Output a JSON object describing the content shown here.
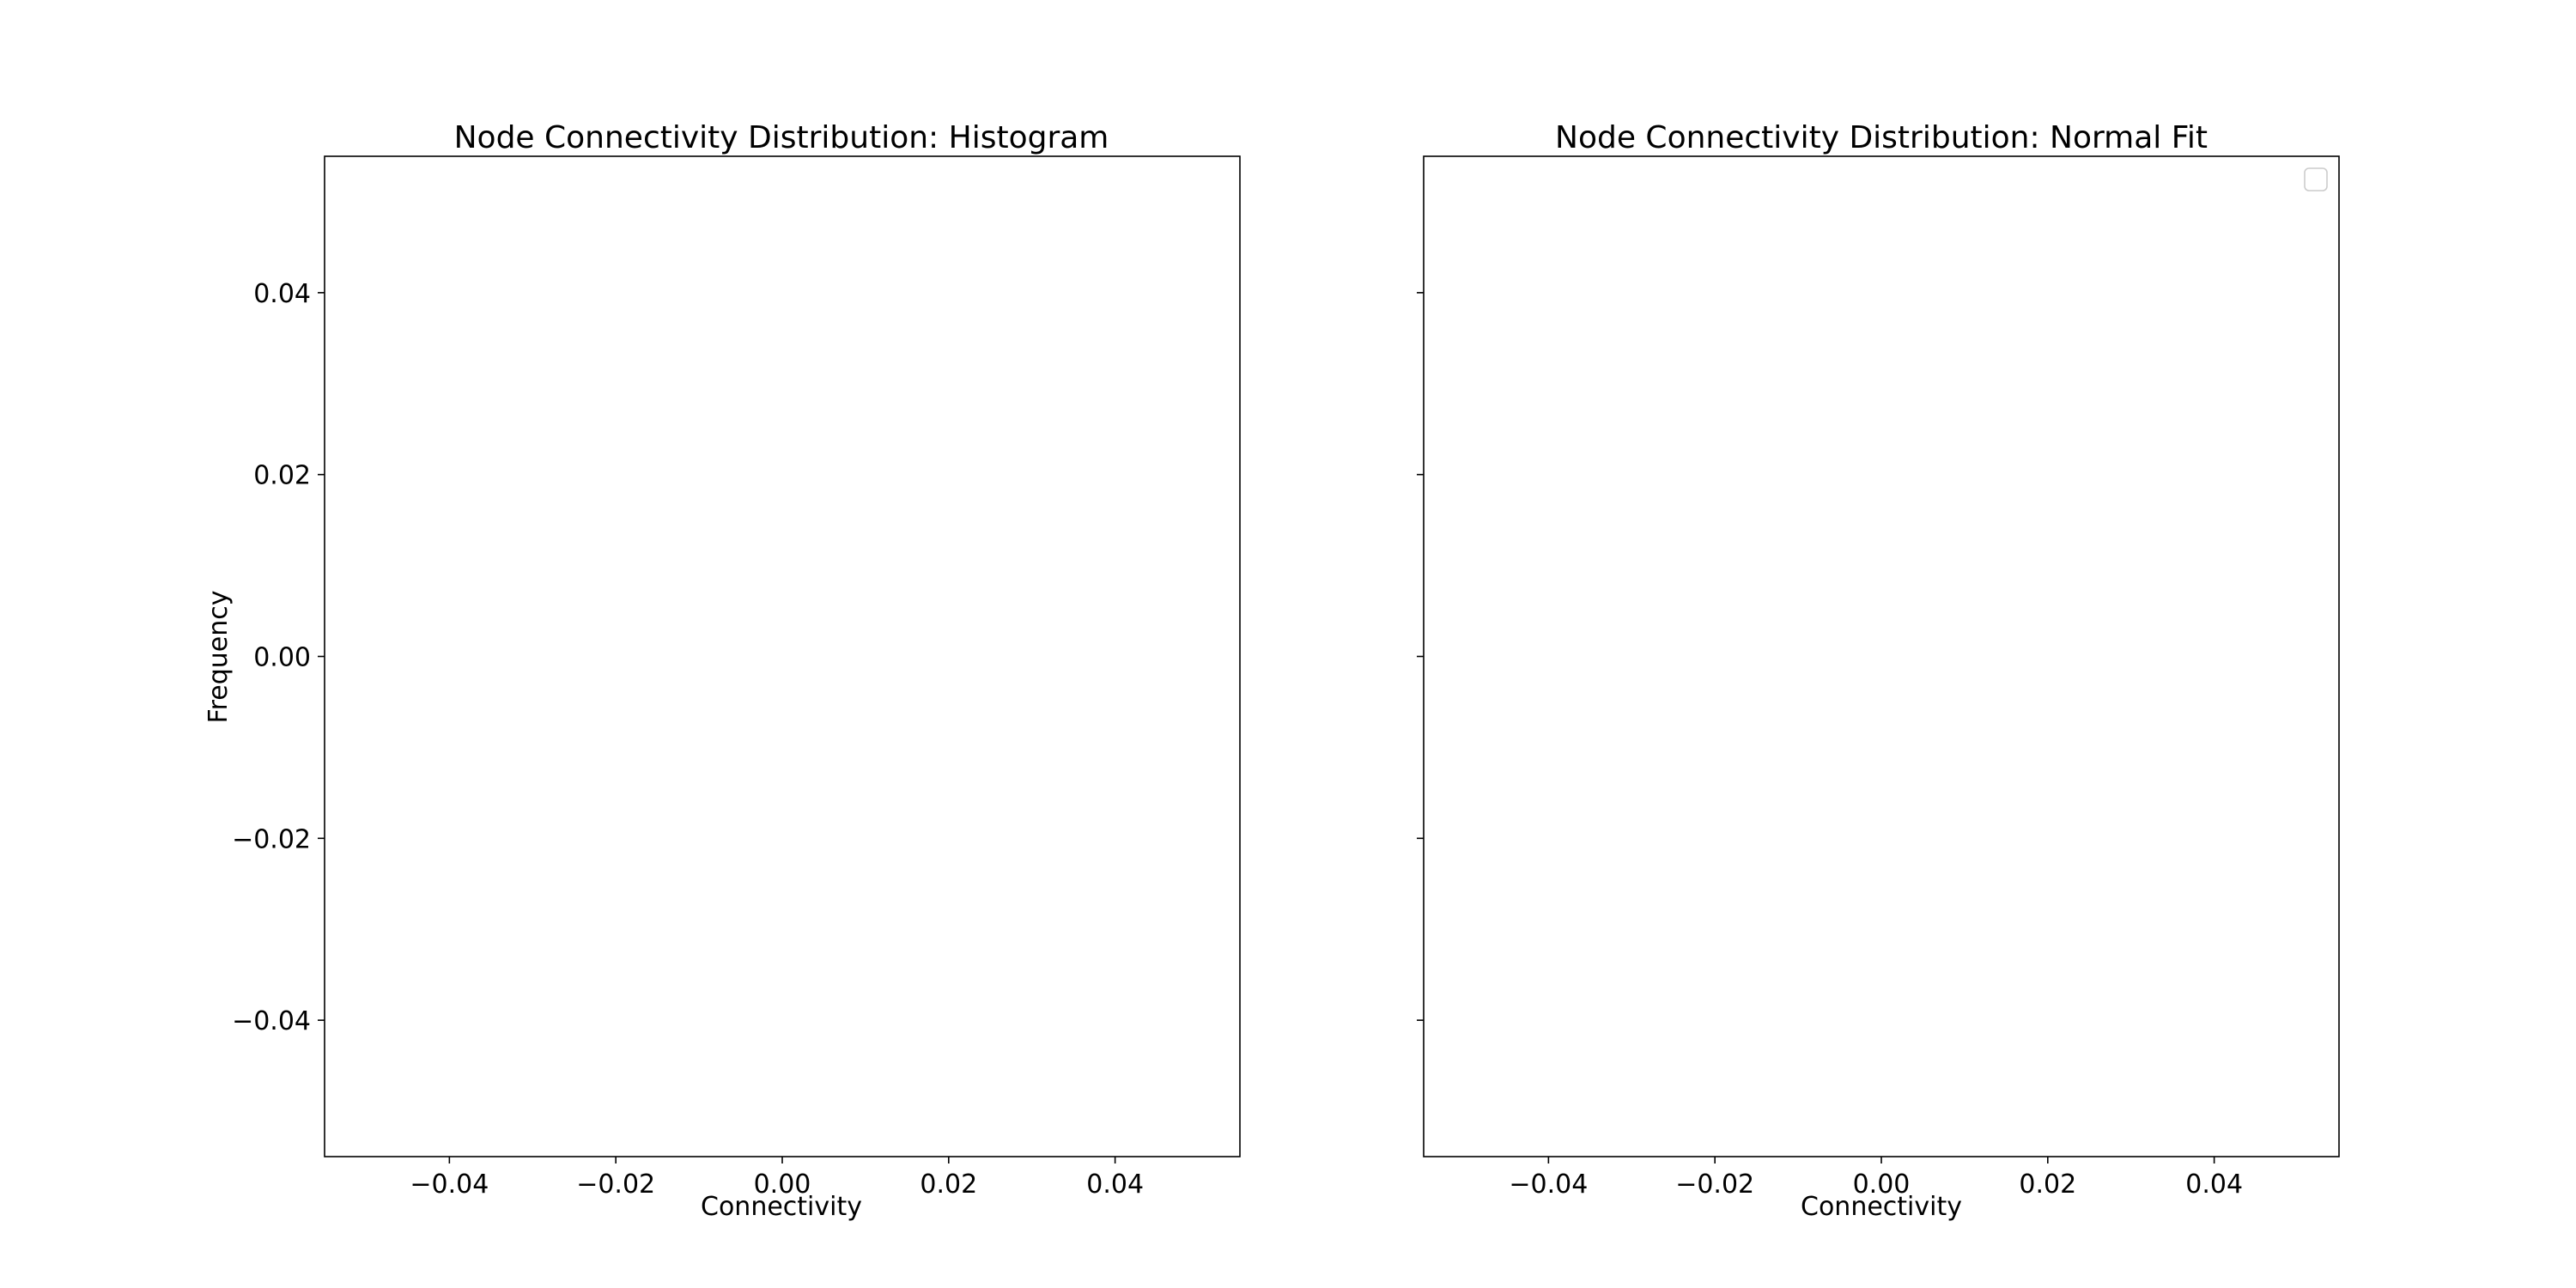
{
  "chart_data": [
    {
      "type": "bar",
      "title": "Node Connectivity Distribution: Histogram",
      "xlabel": "Connectivity",
      "ylabel": "Frequency",
      "xlim": [
        -0.055,
        0.055
      ],
      "ylim": [
        -0.055,
        0.055
      ],
      "xticks": [
        -0.04,
        -0.02,
        0.0,
        0.02,
        0.04
      ],
      "xtick_labels": [
        "−0.04",
        "−0.02",
        "0.00",
        "0.02",
        "0.04"
      ],
      "yticks": [
        -0.04,
        -0.02,
        0.0,
        0.02,
        0.04
      ],
      "ytick_labels": [
        "−0.04",
        "−0.02",
        "0.00",
        "0.02",
        "0.04"
      ],
      "series": [],
      "legend": false
    },
    {
      "type": "line",
      "title": "Node Connectivity Distribution: Normal Fit",
      "xlabel": "Connectivity",
      "ylabel": "",
      "xlim": [
        -0.055,
        0.055
      ],
      "ylim": [
        -0.055,
        0.055
      ],
      "xticks": [
        -0.04,
        -0.02,
        0.0,
        0.02,
        0.04
      ],
      "xtick_labels": [
        "−0.04",
        "−0.02",
        "0.00",
        "0.02",
        "0.04"
      ],
      "yticks": [
        -0.04,
        -0.02,
        0.0,
        0.02,
        0.04
      ],
      "ytick_labels": [
        "",
        "",
        "",
        "",
        ""
      ],
      "series": [],
      "legend": true,
      "legend_position": "top-right",
      "legend_entries": []
    }
  ]
}
